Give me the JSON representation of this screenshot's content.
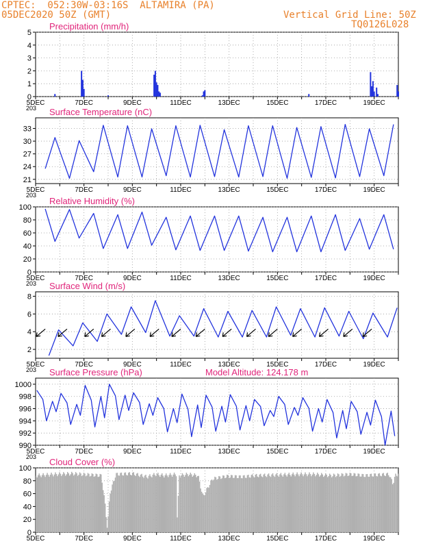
{
  "header": {
    "line1": "CPTEC:  052:30W-03:16S  ALTAMIRA (PA)",
    "line2": "05DEC2020 50Z (GMT)",
    "grid_note": "Vertical Grid Line: 50Z",
    "code": "TQ0126L028",
    "stub_label": "203"
  },
  "colors": {
    "header": "#e8802a",
    "title": "#e0247a",
    "series": "#2233dd",
    "cloud": "#b0b0b0",
    "arrow": "#000000"
  },
  "x_ticks": [
    "5DEC",
    "7DEC",
    "9DEC",
    "11DEC",
    "13DEC",
    "15DEC",
    "17DEC",
    "19DEC"
  ],
  "chart_data": [
    {
      "type": "bar",
      "title": "Precipitation (mm/h)",
      "ylim": [
        0,
        5
      ],
      "y_ticks": [
        "0",
        "1",
        "2",
        "3",
        "4",
        "5"
      ],
      "x_day_range": [
        5,
        20
      ],
      "bars": [
        [
          5.8,
          0.2
        ],
        [
          6.9,
          2.0
        ],
        [
          6.95,
          1.3
        ],
        [
          7.0,
          0.6
        ],
        [
          8.0,
          0.1
        ],
        [
          9.9,
          1.7
        ],
        [
          9.95,
          2.0
        ],
        [
          10.0,
          1.1
        ],
        [
          10.05,
          0.9
        ],
        [
          10.1,
          0.4
        ],
        [
          10.15,
          0.3
        ],
        [
          11.9,
          0.1
        ],
        [
          11.95,
          0.4
        ],
        [
          12.0,
          0.5
        ],
        [
          16.3,
          0.2
        ],
        [
          18.85,
          1.9
        ],
        [
          18.9,
          0.8
        ],
        [
          18.95,
          1.2
        ],
        [
          19.0,
          0.4
        ],
        [
          19.1,
          0.7
        ],
        [
          19.15,
          0.2
        ],
        [
          19.95,
          0.9
        ],
        [
          20.0,
          0.4
        ]
      ]
    },
    {
      "type": "line",
      "title": "Surface Temperature (nC)",
      "ylim": [
        20,
        35
      ],
      "y_ticks": [
        "21",
        "24",
        "27",
        "30",
        "33"
      ],
      "x_day_range": [
        5,
        20
      ],
      "min_temps": [
        23.4,
        21.2,
        22.7,
        21.5,
        21.5,
        21.8,
        21.5,
        21.6,
        21.5,
        21.6,
        21.2,
        21.4,
        21.3,
        21.6,
        21.8
      ],
      "max_temps": [
        30.5,
        29.8,
        33.3,
        33.2,
        32.5,
        33.2,
        33.3,
        32.3,
        33.2,
        33.2,
        32.8,
        33.0,
        33.5,
        32.5,
        33.5
      ]
    },
    {
      "type": "line",
      "title": "Relative Humidity (%)",
      "ylim": [
        0,
        100
      ],
      "y_ticks": [
        "0",
        "20",
        "40",
        "60",
        "80",
        "100"
      ],
      "x_day_range": [
        5,
        20
      ],
      "min_rh": [
        47,
        52,
        36,
        36,
        41,
        34,
        33,
        33,
        32,
        31,
        31,
        31,
        33,
        35,
        35
      ],
      "max_rh": [
        97,
        96,
        90,
        88,
        92,
        84,
        86,
        86,
        86,
        84,
        84,
        86,
        88,
        82,
        88
      ]
    },
    {
      "type": "line",
      "title": "Surface Wind (m/s)",
      "ylim": [
        1,
        8.5
      ],
      "y_ticks": [
        "2",
        "4",
        "6",
        "8"
      ],
      "x_day_range": [
        5,
        20
      ],
      "min_speed": [
        1.3,
        2.4,
        2.9,
        3.7,
        3.9,
        3.5,
        3.5,
        3.4,
        3.4,
        3.4,
        3.6,
        3.4,
        3.5,
        3.2,
        3.4
      ],
      "max_speed": [
        4.2,
        5.0,
        6.0,
        6.8,
        7.5,
        5.8,
        6.6,
        6.3,
        6.4,
        6.8,
        6.6,
        6.7,
        6.3,
        6.1,
        6.7
      ],
      "arrow_days": [
        5.4,
        6.3,
        7.4,
        8.1,
        9.1,
        10.1,
        11.0,
        12.0,
        13.1,
        14.1,
        15.0,
        16.0,
        17.1,
        18.1,
        18.9
      ],
      "arrow_dir": "from northeast"
    },
    {
      "type": "line",
      "title": "Surface Pressure (hPa)",
      "subtitle": "Model Altitude: 124.178  m",
      "ylim": [
        990,
        1001
      ],
      "y_ticks": [
        "990",
        "992",
        "994",
        "996",
        "998",
        "1000"
      ],
      "x_day_range": [
        5,
        20
      ],
      "max_p": [
        999.0,
        998.5,
        999.8,
        1000.0,
        998.6,
        997.8,
        998.4,
        998.2,
        998.3,
        997.5,
        998.0,
        997.8,
        997.5,
        997.2,
        997.4
      ],
      "min_p": [
        994.0,
        993.4,
        993.0,
        994.2,
        993.4,
        992.2,
        991.4,
        992.3,
        992.5,
        993.2,
        993.4,
        992.3,
        991.2,
        991.8,
        990.0
      ]
    },
    {
      "type": "area",
      "title": "Cloud Cover (%)",
      "ylim": [
        0,
        100
      ],
      "y_ticks": [
        "0",
        "20",
        "40",
        "60",
        "80",
        "100"
      ],
      "x_day_range": [
        5,
        20
      ],
      "keypoints": [
        [
          5.0,
          88
        ],
        [
          5.8,
          90
        ],
        [
          6.5,
          91
        ],
        [
          7.3,
          89
        ],
        [
          7.7,
          88
        ],
        [
          7.85,
          45
        ],
        [
          7.95,
          5
        ],
        [
          8.05,
          60
        ],
        [
          8.3,
          90
        ],
        [
          9.0,
          91
        ],
        [
          9.6,
          86
        ],
        [
          9.95,
          90
        ],
        [
          10.3,
          88
        ],
        [
          10.8,
          90
        ],
        [
          10.85,
          2
        ],
        [
          10.9,
          88
        ],
        [
          11.3,
          90
        ],
        [
          11.7,
          88
        ],
        [
          11.9,
          55
        ],
        [
          12.3,
          83
        ],
        [
          12.9,
          87
        ],
        [
          13.5,
          86
        ],
        [
          14.1,
          88
        ],
        [
          15.0,
          89
        ],
        [
          15.8,
          90
        ],
        [
          16.5,
          90
        ],
        [
          17.2,
          88
        ],
        [
          18.0,
          90
        ],
        [
          18.6,
          88
        ],
        [
          19.0,
          89
        ],
        [
          19.6,
          90
        ],
        [
          19.75,
          75
        ],
        [
          19.85,
          88
        ],
        [
          20.0,
          90
        ]
      ]
    }
  ]
}
